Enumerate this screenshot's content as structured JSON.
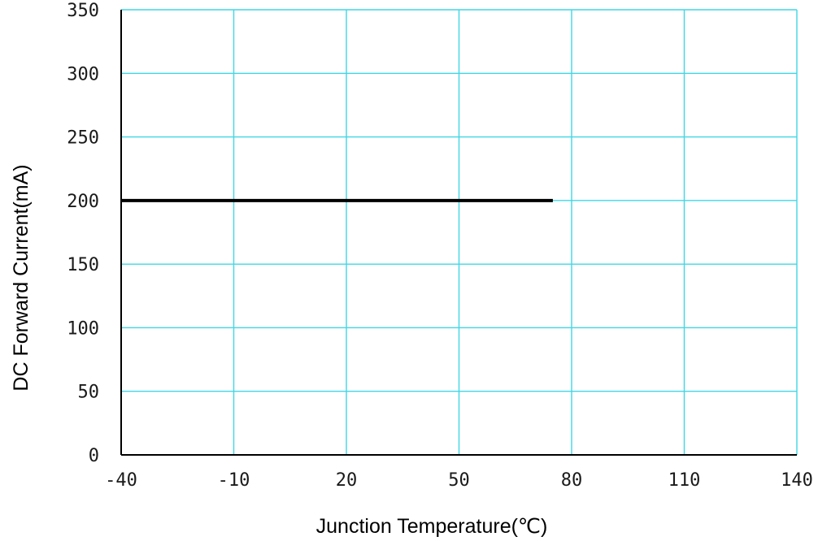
{
  "chart_data": {
    "type": "line",
    "title": "",
    "xlabel": "Junction Temperature(℃)",
    "ylabel": "DC Forward Current(mA)",
    "xlim": [
      -40,
      140
    ],
    "ylim": [
      0,
      350
    ],
    "x_ticks": [
      -40,
      -10,
      20,
      50,
      80,
      110,
      140
    ],
    "y_ticks": [
      0,
      50,
      100,
      150,
      200,
      250,
      300,
      350
    ],
    "x_tick_labels": [
      "-40",
      "-10",
      "20",
      "50",
      "80",
      "110",
      "140"
    ],
    "y_tick_labels": [
      "0",
      "50",
      "100",
      "150",
      "200",
      "250",
      "300",
      "350"
    ],
    "grid": true,
    "series": [
      {
        "x": [
          -40,
          75
        ],
        "y": [
          200,
          200
        ]
      }
    ],
    "colors": {
      "grid": "#3fd7e6",
      "axis": "#000000",
      "line": "#000000"
    }
  }
}
